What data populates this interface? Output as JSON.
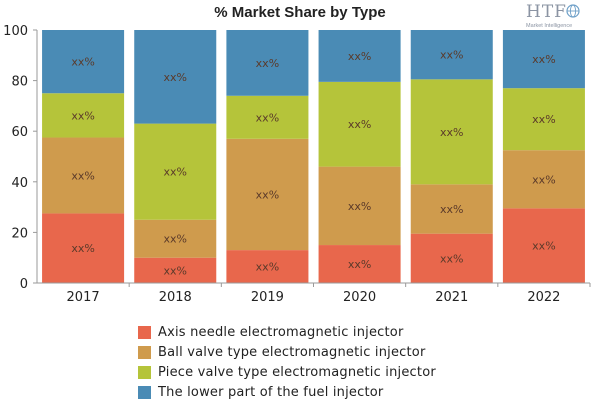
{
  "title": "% Market Share by Type",
  "logo": {
    "letters": "HTF",
    "tagline": "Market Intelligence"
  },
  "chart_data": {
    "type": "bar",
    "stacked": true,
    "title": "% Market Share by Type",
    "categories": [
      "2017",
      "2018",
      "2019",
      "2020",
      "2021",
      "2022"
    ],
    "ylim": [
      0,
      100
    ],
    "yticks": [
      0,
      20,
      40,
      60,
      80,
      100
    ],
    "grid": false,
    "legend_position": "bottom",
    "data_label": "xx%",
    "series": [
      {
        "name": "Axis needle electromagnetic injector",
        "color": "#e8674c",
        "values": [
          27.5,
          10,
          13,
          15,
          19.5,
          29.5
        ]
      },
      {
        "name": "Ball valve type electromagnetic injector",
        "color": "#cf9b4d",
        "values": [
          30,
          15,
          44,
          31,
          19.5,
          23
        ]
      },
      {
        "name": "Piece valve type electromagnetic injector",
        "color": "#b5c43a",
        "values": [
          17.5,
          38,
          17,
          33.5,
          41.5,
          24.5
        ]
      },
      {
        "name": "The lower part of the fuel injector",
        "color": "#4a8bb5",
        "values": [
          25,
          37,
          26,
          20.5,
          19.5,
          23
        ]
      }
    ]
  }
}
